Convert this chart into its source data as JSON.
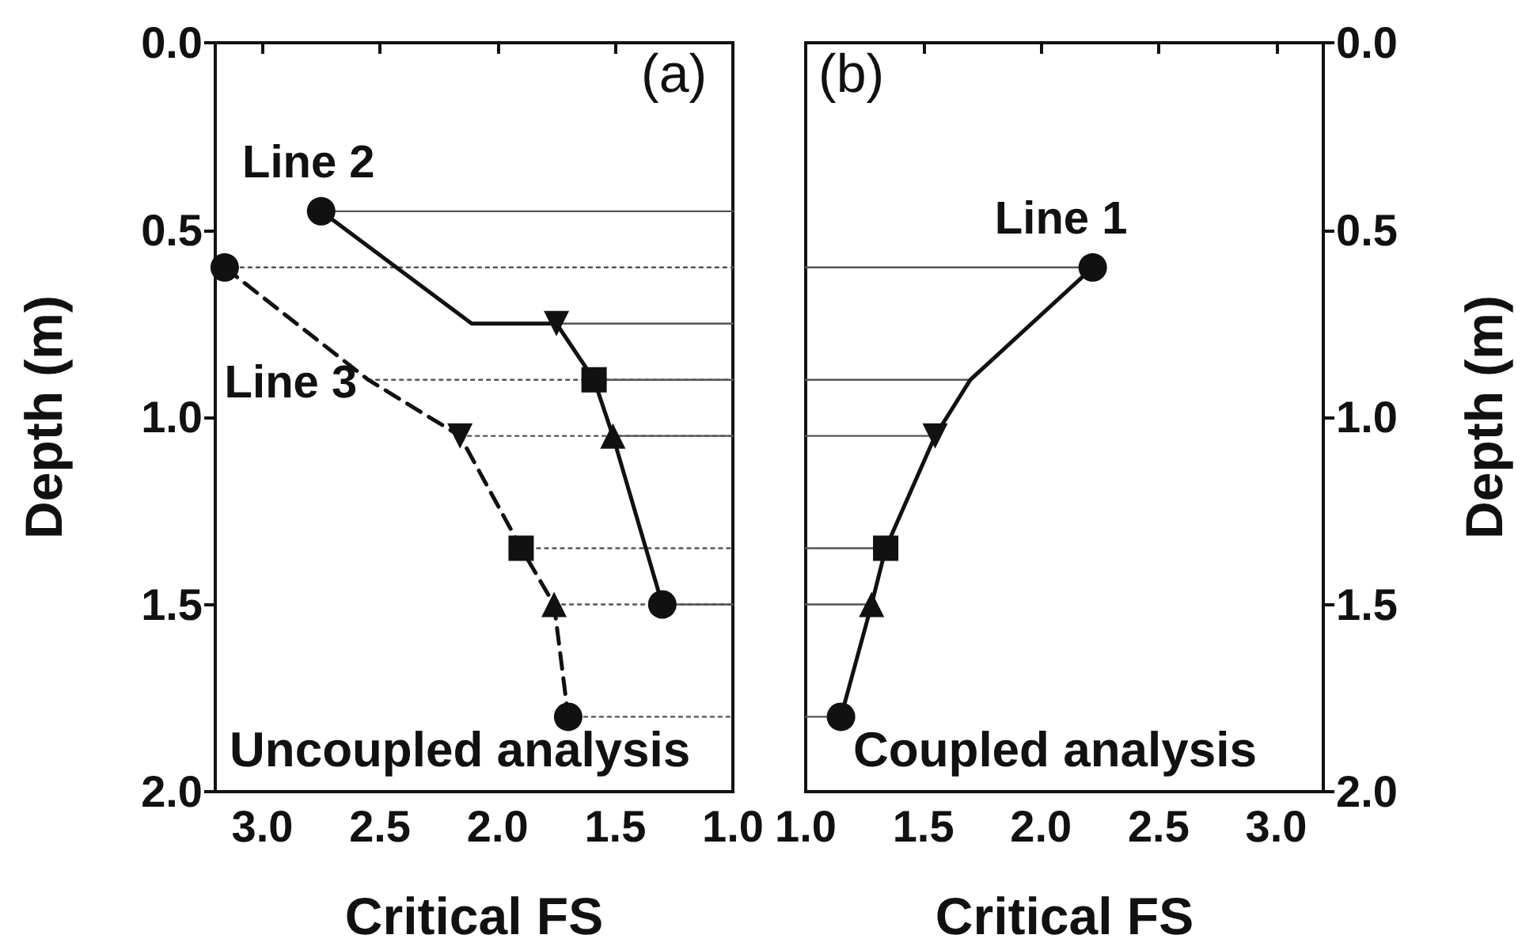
{
  "chart_data": [
    {
      "type": "line",
      "xlabel": "Critical FS",
      "ylabel": "Depth (m)",
      "annotations": [
        "(a)",
        "Uncoupled analysis"
      ],
      "xlim": [
        3.2,
        1.0
      ],
      "xticks": [
        {
          "value": 3.0,
          "label": "3.0"
        },
        {
          "value": 2.5,
          "label": "2.5"
        },
        {
          "value": 2.0,
          "label": "2.0"
        },
        {
          "value": 1.5,
          "label": "1.5"
        },
        {
          "value": 1.0,
          "label": "1.0"
        }
      ],
      "ylim": [
        2.0,
        0.0
      ],
      "yticks": [
        {
          "value": 0,
          "label": "0.0"
        },
        {
          "value": 0.5,
          "label": "0.5"
        },
        {
          "value": 1.0,
          "label": "1.0"
        },
        {
          "value": 1.5,
          "label": "1.5"
        },
        {
          "value": 2.0,
          "label": "2.0"
        }
      ],
      "grid": false,
      "legend": false,
      "series": [
        {
          "name": "Line 2",
          "color": "#111111",
          "line_style": "solid",
          "marker": [
            "circle",
            "none",
            "triangle-down",
            "square",
            "triangle",
            "circle"
          ],
          "x": [
            2.75,
            2.11,
            1.75,
            1.59,
            1.51,
            1.3
          ],
          "values": [
            0.45,
            0.75,
            0.75,
            0.9,
            1.05,
            1.5
          ]
        },
        {
          "name": "Line 3",
          "color": "#111111",
          "line_style": "dashed",
          "marker": [
            "circle",
            "none",
            "triangle-down",
            "square",
            "triangle",
            "circle"
          ],
          "x": [
            3.16,
            2.55,
            2.16,
            1.9,
            1.76,
            1.7
          ],
          "values": [
            0.6,
            0.9,
            1.05,
            1.35,
            1.5,
            1.8
          ]
        },
        {
          "color": "#555555",
          "line_style": "solid",
          "x": [
            2.75,
            1.0
          ],
          "values": [
            0.45,
            0.45
          ]
        },
        {
          "color": "#555555",
          "line_style": "solid",
          "x": [
            1.75,
            1.0
          ],
          "values": [
            0.75,
            0.75
          ]
        },
        {
          "color": "#555555",
          "line_style": "solid",
          "x": [
            1.59,
            1.0
          ],
          "values": [
            0.9,
            0.9
          ]
        },
        {
          "color": "#555555",
          "line_style": "solid",
          "x": [
            1.51,
            1.0
          ],
          "values": [
            1.05,
            1.05
          ]
        },
        {
          "color": "#555555",
          "line_style": "solid",
          "x": [
            1.3,
            1.0
          ],
          "values": [
            1.5,
            1.5
          ]
        },
        {
          "color": "#555555",
          "line_style": "dotted",
          "x": [
            3.16,
            1.0
          ],
          "values": [
            0.6,
            0.6
          ]
        },
        {
          "color": "#555555",
          "line_style": "dotted",
          "x": [
            2.55,
            1.0
          ],
          "values": [
            0.9,
            0.9
          ]
        },
        {
          "color": "#555555",
          "line_style": "dotted",
          "x": [
            2.16,
            1.0
          ],
          "values": [
            1.05,
            1.05
          ]
        },
        {
          "color": "#555555",
          "line_style": "dotted",
          "x": [
            1.9,
            1.0
          ],
          "values": [
            1.35,
            1.35
          ]
        },
        {
          "color": "#555555",
          "line_style": "dotted",
          "x": [
            1.76,
            1.0
          ],
          "values": [
            1.5,
            1.5
          ]
        },
        {
          "color": "#555555",
          "line_style": "dotted",
          "x": [
            1.7,
            1.0
          ],
          "values": [
            1.8,
            1.8
          ]
        }
      ]
    },
    {
      "type": "line",
      "xlabel": "Critical FS",
      "y2label": "Depth (m)",
      "annotations": [
        "(b)",
        "Coupled analysis"
      ],
      "xlim": [
        1.0,
        3.2
      ],
      "xticks": [
        {
          "value": 1.0,
          "label": "1.0"
        },
        {
          "value": 1.5,
          "label": "1.5"
        },
        {
          "value": 2.0,
          "label": "2.0"
        },
        {
          "value": 2.5,
          "label": "2.5"
        },
        {
          "value": 3.0,
          "label": "3.0"
        }
      ],
      "y2lim": [
        2.0,
        0.0
      ],
      "y2ticks": [
        {
          "value": 0,
          "label": "0.0"
        },
        {
          "value": 0.5,
          "label": "0.5"
        },
        {
          "value": 1.0,
          "label": "1.0"
        },
        {
          "value": 1.5,
          "label": "1.5"
        },
        {
          "value": 2.0,
          "label": "2.0"
        }
      ],
      "grid": false,
      "legend": false,
      "series": [
        {
          "name": "Line 1",
          "color": "#111111",
          "axis": "y2",
          "line_style": "solid",
          "marker": [
            "circle",
            "none",
            "triangle-down",
            "square",
            "triangle",
            "circle"
          ],
          "x": [
            2.22,
            1.7,
            1.55,
            1.34,
            1.28,
            1.15
          ],
          "values": [
            0.6,
            0.9,
            1.05,
            1.35,
            1.5,
            1.8
          ]
        },
        {
          "color": "#555555",
          "axis": "y2",
          "line_style": "solid",
          "x": [
            2.22,
            1.0
          ],
          "values": [
            0.6,
            0.6
          ]
        },
        {
          "color": "#555555",
          "axis": "y2",
          "line_style": "solid",
          "x": [
            1.7,
            1.0
          ],
          "values": [
            0.9,
            0.9
          ]
        },
        {
          "color": "#555555",
          "axis": "y2",
          "line_style": "solid",
          "x": [
            1.55,
            1.0
          ],
          "values": [
            1.05,
            1.05
          ]
        },
        {
          "color": "#555555",
          "axis": "y2",
          "line_style": "solid",
          "x": [
            1.34,
            1.0
          ],
          "values": [
            1.35,
            1.35
          ]
        },
        {
          "color": "#555555",
          "axis": "y2",
          "line_style": "solid",
          "x": [
            1.28,
            1.0
          ],
          "values": [
            1.5,
            1.5
          ]
        },
        {
          "color": "#555555",
          "axis": "y2",
          "line_style": "solid",
          "x": [
            1.15,
            1.0
          ],
          "values": [
            1.8,
            1.8
          ]
        }
      ]
    }
  ]
}
